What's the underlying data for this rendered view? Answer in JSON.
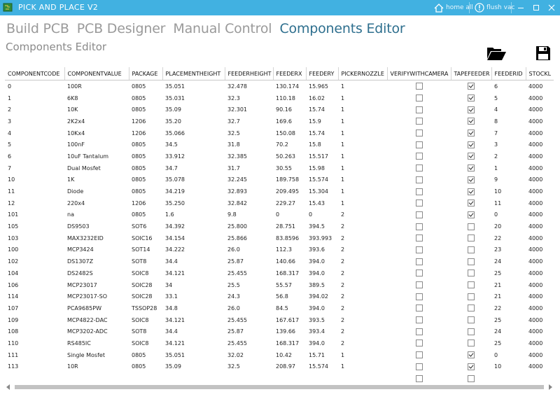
{
  "window": {
    "title": "PICK AND PLACE V2",
    "home_label": "home all",
    "flush_label": "flush vac"
  },
  "tabs": [
    {
      "label": "Build PCB",
      "active": false
    },
    {
      "label": "PCB Designer",
      "active": false
    },
    {
      "label": "Manual Control",
      "active": false
    },
    {
      "label": "Components Editor",
      "active": true
    }
  ],
  "subtitle": "Components Editor",
  "toolbar": {
    "open_icon": "folder-open-icon",
    "save_icon": "floppy-save-icon"
  },
  "colors": {
    "titlebar": "#41b1e1",
    "active_tab": "#2e6f8e",
    "inactive_tab": "#9a9a9a"
  },
  "table": {
    "columns": [
      "COMPONENTCODE",
      "COMPONENTVALUE",
      "PACKAGE",
      "PLACEMENTHEIGHT",
      "FEEDERHEIGHT",
      "FEEDERX",
      "FEEDERY",
      "PICKERNOZZLE",
      "VERIFYWITHCAMERA",
      "TAPEFEEDER",
      "FEEDERID",
      "STOCKL"
    ],
    "rows": [
      {
        "code": "0",
        "value": "100R",
        "package": "0805",
        "placement": "35.051",
        "feederheight": "32.478",
        "fx": "130.174",
        "fy": "15.965",
        "nozzle": "1",
        "verify": false,
        "tape": true,
        "fid": "6",
        "stock": "4000"
      },
      {
        "code": "1",
        "value": "6K8",
        "package": "0805",
        "placement": "35.031",
        "feederheight": "32.3",
        "fx": "110.18",
        "fy": "16.02",
        "nozzle": "1",
        "verify": false,
        "tape": true,
        "fid": "5",
        "stock": "4000"
      },
      {
        "code": "2",
        "value": "10K",
        "package": "0805",
        "placement": "35.09",
        "feederheight": "32.301",
        "fx": "90.16",
        "fy": "15.74",
        "nozzle": "1",
        "verify": false,
        "tape": true,
        "fid": "4",
        "stock": "4000"
      },
      {
        "code": "3",
        "value": "2K2x4",
        "package": "1206",
        "placement": "35.20",
        "feederheight": "32.7",
        "fx": "169.6",
        "fy": "15.9",
        "nozzle": "1",
        "verify": false,
        "tape": true,
        "fid": "8",
        "stock": "4000"
      },
      {
        "code": "4",
        "value": "10Kx4",
        "package": "1206",
        "placement": "35.066",
        "feederheight": "32.5",
        "fx": "150.08",
        "fy": "15.74",
        "nozzle": "1",
        "verify": false,
        "tape": true,
        "fid": "7",
        "stock": "4000"
      },
      {
        "code": "5",
        "value": "100nF",
        "package": "0805",
        "placement": "34.5",
        "feederheight": "31.8",
        "fx": "70.2",
        "fy": "15.8",
        "nozzle": "1",
        "verify": false,
        "tape": true,
        "fid": "3",
        "stock": "4000"
      },
      {
        "code": "6",
        "value": "10uF Tantalum",
        "package": "0805",
        "placement": "33.912",
        "feederheight": "32.385",
        "fx": "50.263",
        "fy": "15.517",
        "nozzle": "1",
        "verify": false,
        "tape": true,
        "fid": "2",
        "stock": "4000"
      },
      {
        "code": "7",
        "value": "Dual Mosfet",
        "package": "0805",
        "placement": "34.7",
        "feederheight": "31.7",
        "fx": "30.55",
        "fy": "15.98",
        "nozzle": "1",
        "verify": false,
        "tape": true,
        "fid": "1",
        "stock": "4000"
      },
      {
        "code": "10",
        "value": "1K",
        "package": "0805",
        "placement": "35.078",
        "feederheight": "32.245",
        "fx": "189.758",
        "fy": "15.574",
        "nozzle": "1",
        "verify": false,
        "tape": true,
        "fid": "9",
        "stock": "4000"
      },
      {
        "code": "11",
        "value": "Diode",
        "package": "0805",
        "placement": "34.219",
        "feederheight": "32.893",
        "fx": "209.495",
        "fy": "15.304",
        "nozzle": "1",
        "verify": false,
        "tape": true,
        "fid": "10",
        "stock": "4000"
      },
      {
        "code": "12",
        "value": "220x4",
        "package": "1206",
        "placement": "35.250",
        "feederheight": "32.842",
        "fx": "229.27",
        "fy": "15.43",
        "nozzle": "1",
        "verify": false,
        "tape": true,
        "fid": "11",
        "stock": "4000"
      },
      {
        "code": "101",
        "value": "na",
        "package": "0805",
        "placement": "1.6",
        "feederheight": "9.8",
        "fx": "0",
        "fy": "0",
        "nozzle": "2",
        "verify": false,
        "tape": true,
        "fid": "0",
        "stock": "4000"
      },
      {
        "code": "105",
        "value": "DS9503",
        "package": "SOT6",
        "placement": "34.392",
        "feederheight": "25.800",
        "fx": "28.751",
        "fy": "394.5",
        "nozzle": "2",
        "verify": false,
        "tape": false,
        "fid": "20",
        "stock": "4000"
      },
      {
        "code": "103",
        "value": "MAX3232EID",
        "package": "SOIC16",
        "placement": "34.154",
        "feederheight": "25.866",
        "fx": "83.8596",
        "fy": "393.993",
        "nozzle": "2",
        "verify": false,
        "tape": false,
        "fid": "22",
        "stock": "4000"
      },
      {
        "code": "100",
        "value": "MCP3424",
        "package": "SOT14",
        "placement": "34.222",
        "feederheight": "26.0",
        "fx": "112.3",
        "fy": "393.6",
        "nozzle": "2",
        "verify": false,
        "tape": false,
        "fid": "23",
        "stock": "4000"
      },
      {
        "code": "102",
        "value": "DS1307Z",
        "package": "SOT8",
        "placement": "34.4",
        "feederheight": "25.87",
        "fx": "140.66",
        "fy": "394.0",
        "nozzle": "2",
        "verify": false,
        "tape": false,
        "fid": "24",
        "stock": "4000"
      },
      {
        "code": "104",
        "value": "DS2482S",
        "package": "SOIC8",
        "placement": "34.121",
        "feederheight": "25.455",
        "fx": "168.317",
        "fy": "394.0",
        "nozzle": "2",
        "verify": false,
        "tape": false,
        "fid": "25",
        "stock": "4000"
      },
      {
        "code": "106",
        "value": "MCP23017",
        "package": "SOIC28",
        "placement": "34",
        "feederheight": "25.5",
        "fx": "55.57",
        "fy": "389.5",
        "nozzle": "2",
        "verify": false,
        "tape": false,
        "fid": "21",
        "stock": "4000"
      },
      {
        "code": "114",
        "value": "MCP23017-SO",
        "package": "SOIC28",
        "placement": "33.1",
        "feederheight": "24.3",
        "fx": "56.8",
        "fy": "394.02",
        "nozzle": "2",
        "verify": false,
        "tape": false,
        "fid": "21",
        "stock": "4000"
      },
      {
        "code": "107",
        "value": "PCA9685PW",
        "package": "TSSOP28",
        "placement": "34.8",
        "feederheight": "26.0",
        "fx": "84.5",
        "fy": "394.0",
        "nozzle": "2",
        "verify": false,
        "tape": false,
        "fid": "22",
        "stock": "4000"
      },
      {
        "code": "109",
        "value": "MCP4822-DAC",
        "package": "SOIC8",
        "placement": "34.121",
        "feederheight": "25.455",
        "fx": "167.617",
        "fy": "393.5",
        "nozzle": "2",
        "verify": false,
        "tape": false,
        "fid": "25",
        "stock": "4000"
      },
      {
        "code": "108",
        "value": "MCP3202-ADC",
        "package": "SOT8",
        "placement": "34.4",
        "feederheight": "25.87",
        "fx": "139.66",
        "fy": "393.4",
        "nozzle": "2",
        "verify": false,
        "tape": false,
        "fid": "24",
        "stock": "4000"
      },
      {
        "code": "110",
        "value": "RS485IC",
        "package": "SOIC8",
        "placement": "34.121",
        "feederheight": "25.455",
        "fx": "168.317",
        "fy": "394.0",
        "nozzle": "2",
        "verify": false,
        "tape": false,
        "fid": "25",
        "stock": "4000"
      },
      {
        "code": "111",
        "value": "Single Mosfet",
        "package": "0805",
        "placement": "35.051",
        "feederheight": "32.02",
        "fx": "10.42",
        "fy": "15.71",
        "nozzle": "1",
        "verify": false,
        "tape": true,
        "fid": "0",
        "stock": "4000"
      },
      {
        "code": "113",
        "value": "10R",
        "package": "0805",
        "placement": "35.09",
        "feederheight": "32.5",
        "fx": "208.97",
        "fy": "15.574",
        "nozzle": "1",
        "verify": false,
        "tape": true,
        "fid": "10",
        "stock": "4000"
      },
      {
        "code": "",
        "value": "",
        "package": "",
        "placement": "",
        "feederheight": "",
        "fx": "",
        "fy": "",
        "nozzle": "",
        "verify": false,
        "tape": false,
        "fid": "",
        "stock": ""
      }
    ]
  }
}
